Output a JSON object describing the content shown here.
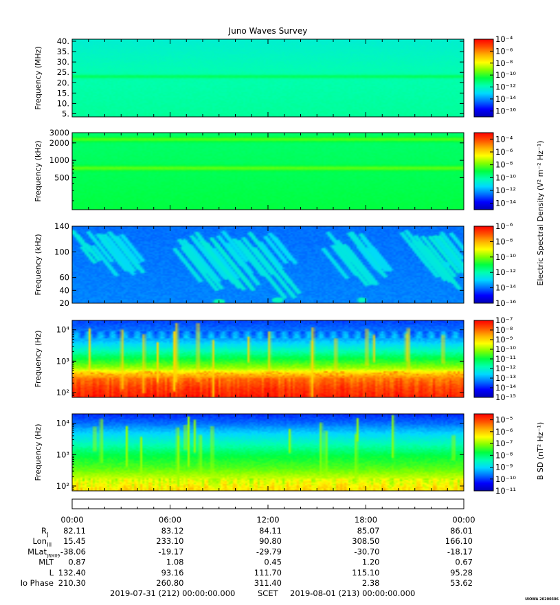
{
  "title": "Juno Waves Survey",
  "colors": {
    "colormap": [
      "#0000b4",
      "#0000ff",
      "#0070ff",
      "#00d8ff",
      "#00ffb0",
      "#00ff40",
      "#80ff00",
      "#ffff00",
      "#ffb000",
      "#ff5000",
      "#ff0000"
    ]
  },
  "colorbar_labels": {
    "electric": "Electric Spectral Density (V² m⁻² Hz⁻¹)",
    "magnetic": "B SD (nT² Hz⁻¹)"
  },
  "chart_data": [
    {
      "type": "heatmap",
      "ylabel": "Frequency (MHz)",
      "yscale": "linear",
      "ylim": [
        3.5,
        41
      ],
      "y_ticks": [
        "5.",
        "10.",
        "15.",
        "20.",
        "25.",
        "30.",
        "35.",
        "40."
      ],
      "y_tick_values": [
        5,
        10,
        15,
        20,
        25,
        30,
        35,
        40
      ],
      "colorbar_ticks": [
        "10⁻⁴",
        "10⁻⁶",
        "10⁻⁸",
        "10⁻¹⁰",
        "10⁻¹²",
        "10⁻¹⁴",
        "10⁻¹⁶"
      ],
      "colorbar_exponents": [
        -4,
        -6,
        -8,
        -10,
        -12,
        -14,
        -16
      ],
      "colorbar_range": [
        -17,
        -4
      ],
      "base_gradient": [
        [
          0,
          0.42
        ],
        [
          0.55,
          0.4
        ],
        [
          1,
          0.36
        ]
      ],
      "bands": [
        {
          "at": 0.52,
          "width": 0.035,
          "level": 0.48
        },
        {
          "at": 0.1,
          "width": 0.03,
          "level": 0.4
        }
      ],
      "streaks": [],
      "spots": []
    },
    {
      "type": "heatmap",
      "ylabel": "Frequency (kHz)",
      "yscale": "log",
      "ylim": [
        140,
        3000
      ],
      "y_ticks": [
        "500",
        "1000",
        "2000",
        "3000"
      ],
      "y_tick_values": [
        500,
        1000,
        2000,
        3000
      ],
      "colorbar_ticks": [
        "10⁻⁴",
        "10⁻⁶",
        "10⁻⁸",
        "10⁻¹⁰",
        "10⁻¹²",
        "10⁻¹⁴"
      ],
      "colorbar_exponents": [
        -4,
        -6,
        -8,
        -10,
        -12,
        -14
      ],
      "colorbar_range": [
        -15,
        -3
      ],
      "base_gradient": [
        [
          0,
          0.5
        ],
        [
          1,
          0.46
        ]
      ],
      "bands": [
        {
          "at": 0.92,
          "width": 0.05,
          "level": 0.56
        },
        {
          "at": 0.54,
          "width": 0.05,
          "level": 0.57
        }
      ],
      "streaks": [],
      "spots": []
    },
    {
      "type": "heatmap",
      "ylabel": "Frequency (kHz)",
      "yscale": "linear",
      "ylim": [
        20,
        140
      ],
      "y_ticks": [
        "20",
        "40",
        "60",
        "100",
        "140"
      ],
      "y_tick_values": [
        20,
        40,
        60,
        100,
        140
      ],
      "colorbar_ticks": [
        "10⁻⁶",
        "10⁻⁸",
        "10⁻¹⁰",
        "10⁻¹²",
        "10⁻¹⁴",
        "10⁻¹⁶"
      ],
      "colorbar_exponents": [
        -6,
        -8,
        -10,
        -12,
        -14,
        -16
      ],
      "colorbar_range": [
        -16,
        -6
      ],
      "base_gradient": [
        [
          0,
          0.22
        ],
        [
          1,
          0.2
        ]
      ],
      "bands": [],
      "streaks": [
        {
          "x": 0.0,
          "len": 0.1,
          "level": 0.34
        },
        {
          "x": 0.04,
          "len": 0.18,
          "level": 0.32
        },
        {
          "x": 0.07,
          "len": 0.22,
          "level": 0.33
        },
        {
          "x": 0.09,
          "len": 0.16,
          "level": 0.31
        },
        {
          "x": 0.26,
          "len": 0.2,
          "level": 0.33
        },
        {
          "x": 0.28,
          "len": 0.26,
          "level": 0.34
        },
        {
          "x": 0.3,
          "len": 0.22,
          "level": 0.32
        },
        {
          "x": 0.33,
          "len": 0.28,
          "level": 0.35
        },
        {
          "x": 0.36,
          "len": 0.18,
          "level": 0.31
        },
        {
          "x": 0.4,
          "len": 0.22,
          "level": 0.33
        },
        {
          "x": 0.44,
          "len": 0.3,
          "level": 0.34
        },
        {
          "x": 0.48,
          "len": 0.16,
          "level": 0.31
        },
        {
          "x": 0.64,
          "len": 0.18,
          "level": 0.32
        },
        {
          "x": 0.67,
          "len": 0.24,
          "level": 0.34
        },
        {
          "x": 0.7,
          "len": 0.22,
          "level": 0.33
        },
        {
          "x": 0.73,
          "len": 0.14,
          "level": 0.31
        },
        {
          "x": 0.84,
          "len": 0.2,
          "level": 0.33
        },
        {
          "x": 0.87,
          "len": 0.24,
          "level": 0.34
        },
        {
          "x": 0.9,
          "len": 0.22,
          "level": 0.35
        },
        {
          "x": 0.93,
          "len": 0.16,
          "level": 0.32
        }
      ],
      "spots": [
        {
          "x": 0.375,
          "y": 0.02,
          "r": 0.015,
          "level": 0.4
        },
        {
          "x": 0.525,
          "y": 0.04,
          "r": 0.015,
          "level": 0.38
        },
        {
          "x": 0.74,
          "y": 0.04,
          "r": 0.012,
          "level": 0.38
        },
        {
          "x": 0.955,
          "y": 0.5,
          "r": 0.003,
          "level": 0.32
        }
      ]
    },
    {
      "type": "heatmap",
      "ylabel": "Frequency (Hz)",
      "yscale": "log",
      "ylim": [
        70,
        20000
      ],
      "y_ticks": [
        "10²",
        "10³",
        "10⁴"
      ],
      "y_tick_values": [
        100,
        1000,
        10000
      ],
      "colorbar_ticks": [
        "10⁻⁷",
        "10⁻⁸",
        "10⁻⁹",
        "10⁻¹⁰",
        "10⁻¹¹",
        "10⁻¹²",
        "10⁻¹³",
        "10⁻¹⁴",
        "10⁻¹⁵"
      ],
      "colorbar_exponents": [
        -7,
        -8,
        -9,
        -10,
        -11,
        -12,
        -13,
        -14,
        -15
      ],
      "colorbar_range": [
        -15,
        -7
      ],
      "base_gradient": [
        [
          0,
          0.96
        ],
        [
          0.12,
          0.92
        ],
        [
          0.24,
          0.86
        ],
        [
          0.3,
          0.76
        ],
        [
          0.38,
          0.62
        ],
        [
          0.5,
          0.5
        ],
        [
          0.62,
          0.38
        ],
        [
          0.74,
          0.27
        ],
        [
          0.88,
          0.2
        ],
        [
          1,
          0.16
        ]
      ],
      "bands": [],
      "streaks": [],
      "spots": []
    },
    {
      "type": "heatmap",
      "ylabel": "Frequency (Hz)",
      "yscale": "log",
      "ylim": [
        70,
        20000
      ],
      "y_ticks": [
        "10²",
        "10³",
        "10⁴"
      ],
      "y_tick_values": [
        100,
        1000,
        10000
      ],
      "colorbar_ticks": [
        "10⁻⁵",
        "10⁻⁶",
        "10⁻⁷",
        "10⁻⁸",
        "10⁻⁹",
        "10⁻¹⁰",
        "10⁻¹¹"
      ],
      "colorbar_exponents": [
        -5,
        -6,
        -7,
        -8,
        -9,
        -10,
        -11
      ],
      "colorbar_range": [
        -11,
        -4.5
      ],
      "base_gradient": [
        [
          0,
          0.74
        ],
        [
          0.15,
          0.66
        ],
        [
          0.3,
          0.56
        ],
        [
          0.45,
          0.5
        ],
        [
          0.6,
          0.4
        ],
        [
          0.75,
          0.3
        ],
        [
          0.88,
          0.2
        ],
        [
          1,
          0.14
        ]
      ],
      "bands": [],
      "streaks": [],
      "spots": []
    }
  ],
  "x_axis": {
    "tick_labels": [
      "00:00",
      "06:00",
      "12:00",
      "18:00",
      "00:00"
    ],
    "tick_hours": [
      0,
      6,
      12,
      18,
      24
    ],
    "range_hours": [
      0,
      24
    ]
  },
  "ephemeris": {
    "rows": [
      {
        "label": "R",
        "sub": "J",
        "values": [
          "82.11",
          "83.12",
          "84.11",
          "85.07",
          "86.01"
        ]
      },
      {
        "label": "Lon",
        "sub": "III",
        "values": [
          "15.45",
          "233.10",
          "90.80",
          "308.50",
          "166.10"
        ]
      },
      {
        "label": "MLat",
        "sub": "JRM09",
        "values": [
          "-38.06",
          "-19.17",
          "-29.79",
          "-30.70",
          "-18.17"
        ]
      },
      {
        "label": "MLT",
        "sub": "",
        "values": [
          "0.87",
          "1.08",
          "0.45",
          "1.20",
          "0.67"
        ]
      },
      {
        "label": "L",
        "sub": "",
        "values": [
          "132.40",
          "93.16",
          "111.70",
          "115.10",
          "95.28"
        ]
      },
      {
        "label": "Io Phase",
        "sub": "",
        "values": [
          "210.30",
          "260.80",
          "311.40",
          "2.38",
          "53.62"
        ]
      }
    ]
  },
  "footer": {
    "start": "2019-07-31 (212) 00:00:00.000",
    "scet": "SCET",
    "end": "2019-08-01 (213) 00:00:00.000"
  },
  "corner_stamp": "UIOWA 20200306"
}
